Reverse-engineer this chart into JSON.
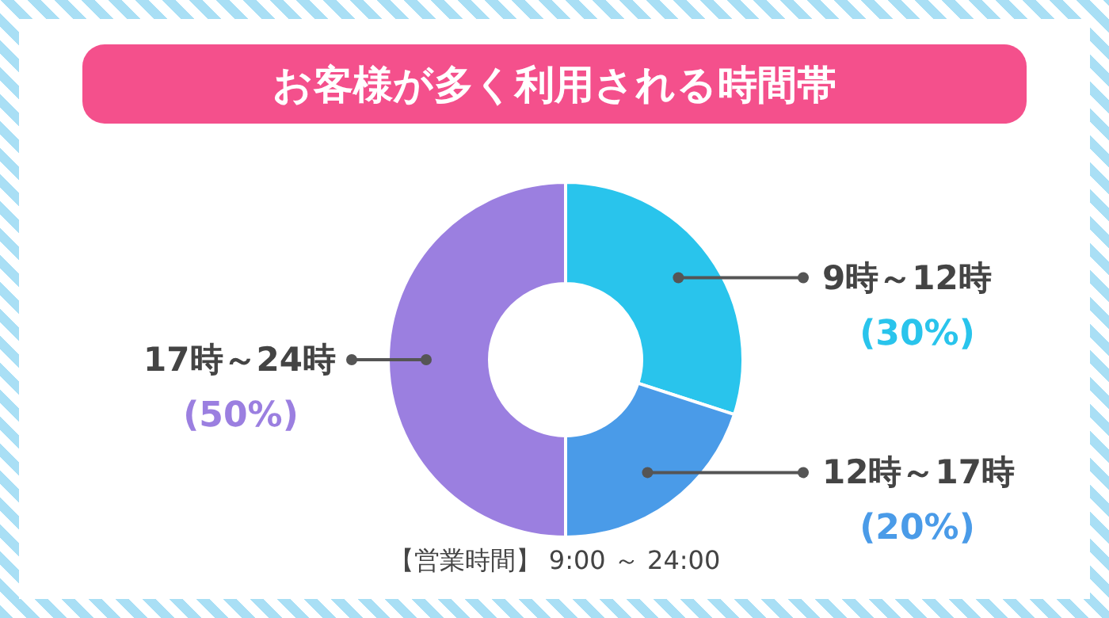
{
  "chart_data": {
    "type": "donut",
    "title": "お客様が多く利用される時間帯",
    "categories": [
      "9時～12時",
      "12時～17時",
      "17時～24時"
    ],
    "values": [
      30,
      20,
      50
    ],
    "colors": [
      "#29c4ec",
      "#4a9be8",
      "#9b7fe0"
    ],
    "value_labels": [
      "(30%)",
      "(20%)",
      "(50%)"
    ],
    "annotations": [
      "【営業時間】 9:00 ～ 24:00"
    ]
  }
}
